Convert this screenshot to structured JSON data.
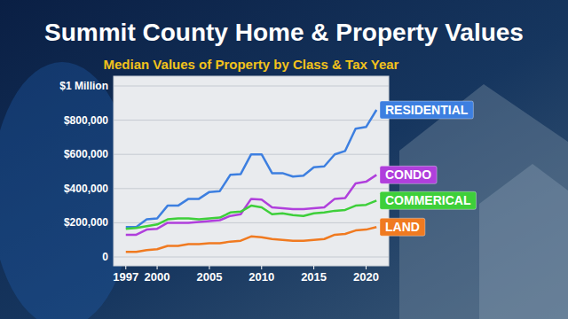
{
  "chart_data": {
    "type": "line",
    "title": "Summit County Home & Property Values",
    "subtitle": "Median Values of Property by Class & Tax Year",
    "x": [
      1997,
      1998,
      1999,
      2000,
      2001,
      2002,
      2003,
      2004,
      2005,
      2006,
      2007,
      2008,
      2009,
      2010,
      2011,
      2012,
      2013,
      2014,
      2015,
      2016,
      2017,
      2018,
      2019,
      2020,
      2021
    ],
    "series": [
      {
        "name": "RESIDENTIAL",
        "color": "#3d7fe0",
        "values": [
          175000,
          175000,
          220000,
          225000,
          300000,
          300000,
          340000,
          340000,
          380000,
          385000,
          480000,
          485000,
          600000,
          600000,
          490000,
          490000,
          470000,
          475000,
          525000,
          530000,
          600000,
          620000,
          750000,
          760000,
          860000
        ]
      },
      {
        "name": "CONDO",
        "color": "#b03fdc",
        "values": [
          130000,
          130000,
          160000,
          165000,
          200000,
          200000,
          200000,
          205000,
          210000,
          215000,
          240000,
          250000,
          340000,
          335000,
          290000,
          285000,
          280000,
          280000,
          285000,
          290000,
          340000,
          345000,
          430000,
          440000,
          480000
        ]
      },
      {
        "name": "COMMERICAL",
        "color": "#3ecf3a",
        "values": [
          165000,
          170000,
          180000,
          190000,
          220000,
          225000,
          225000,
          220000,
          225000,
          230000,
          260000,
          265000,
          300000,
          290000,
          250000,
          255000,
          245000,
          240000,
          255000,
          260000,
          270000,
          275000,
          300000,
          305000,
          330000
        ]
      },
      {
        "name": "LAND",
        "color": "#f07a20",
        "values": [
          30000,
          30000,
          40000,
          45000,
          65000,
          65000,
          75000,
          75000,
          80000,
          80000,
          90000,
          95000,
          120000,
          115000,
          105000,
          100000,
          95000,
          95000,
          100000,
          105000,
          130000,
          135000,
          155000,
          160000,
          175000
        ]
      }
    ],
    "xlim": [
      1996,
      2022
    ],
    "xticks": [
      1997,
      2000,
      2005,
      2010,
      2015,
      2020
    ],
    "ylim": [
      0,
      1000000
    ],
    "yticks": [
      0,
      {
        "value": 200000,
        "label": "$200,000"
      },
      {
        "value": 400000,
        "label": "$400,000"
      },
      {
        "value": 600000,
        "label": "$600,000"
      },
      {
        "value": 800000,
        "label": "$800,000"
      },
      {
        "value": 1000000,
        "label": "$1 Million"
      }
    ],
    "grid": true
  }
}
